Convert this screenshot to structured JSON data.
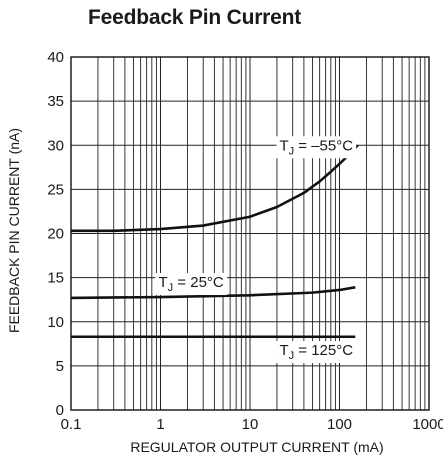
{
  "chart_data": {
    "type": "line",
    "title": "Feedback Pin Current",
    "xlabel": "REGULATOR OUTPUT CURRENT (mA)",
    "ylabel": "FEEDBACK PIN CURRENT (nA)",
    "xscale": "log",
    "xlim": [
      0.1,
      1000
    ],
    "ylim": [
      0,
      40
    ],
    "x_ticks": [
      "0.1",
      "1",
      "10",
      "100",
      "1000"
    ],
    "y_ticks": [
      "0",
      "5",
      "10",
      "15",
      "20",
      "25",
      "30",
      "35",
      "40"
    ],
    "grid": true,
    "series": [
      {
        "name": "T_J = −55°C",
        "label_main": "T",
        "label_sub": "J",
        "label_rest": " = –55°C",
        "label_at": [
          55,
          30
        ],
        "x": [
          0.1,
          0.3,
          1,
          3,
          10,
          20,
          40,
          60,
          80,
          100,
          130,
          160
        ],
        "y": [
          20.3,
          20.3,
          20.5,
          20.9,
          21.9,
          23.0,
          24.6,
          25.9,
          27.0,
          27.9,
          29.0,
          30.0
        ]
      },
      {
        "name": "T_J = 25°C",
        "label_main": "T",
        "label_sub": "J",
        "label_rest": " = 25°C",
        "label_at": [
          2.2,
          14.5
        ],
        "x": [
          0.1,
          1,
          10,
          50,
          100,
          150
        ],
        "y": [
          12.7,
          12.8,
          13.0,
          13.3,
          13.6,
          13.9
        ]
      },
      {
        "name": "T_J = 125°C",
        "label_main": "T",
        "label_sub": "J",
        "label_rest": " = 125°C",
        "label_at": [
          55,
          6.8
        ],
        "x": [
          0.1,
          150
        ],
        "y": [
          8.3,
          8.3
        ]
      }
    ]
  }
}
